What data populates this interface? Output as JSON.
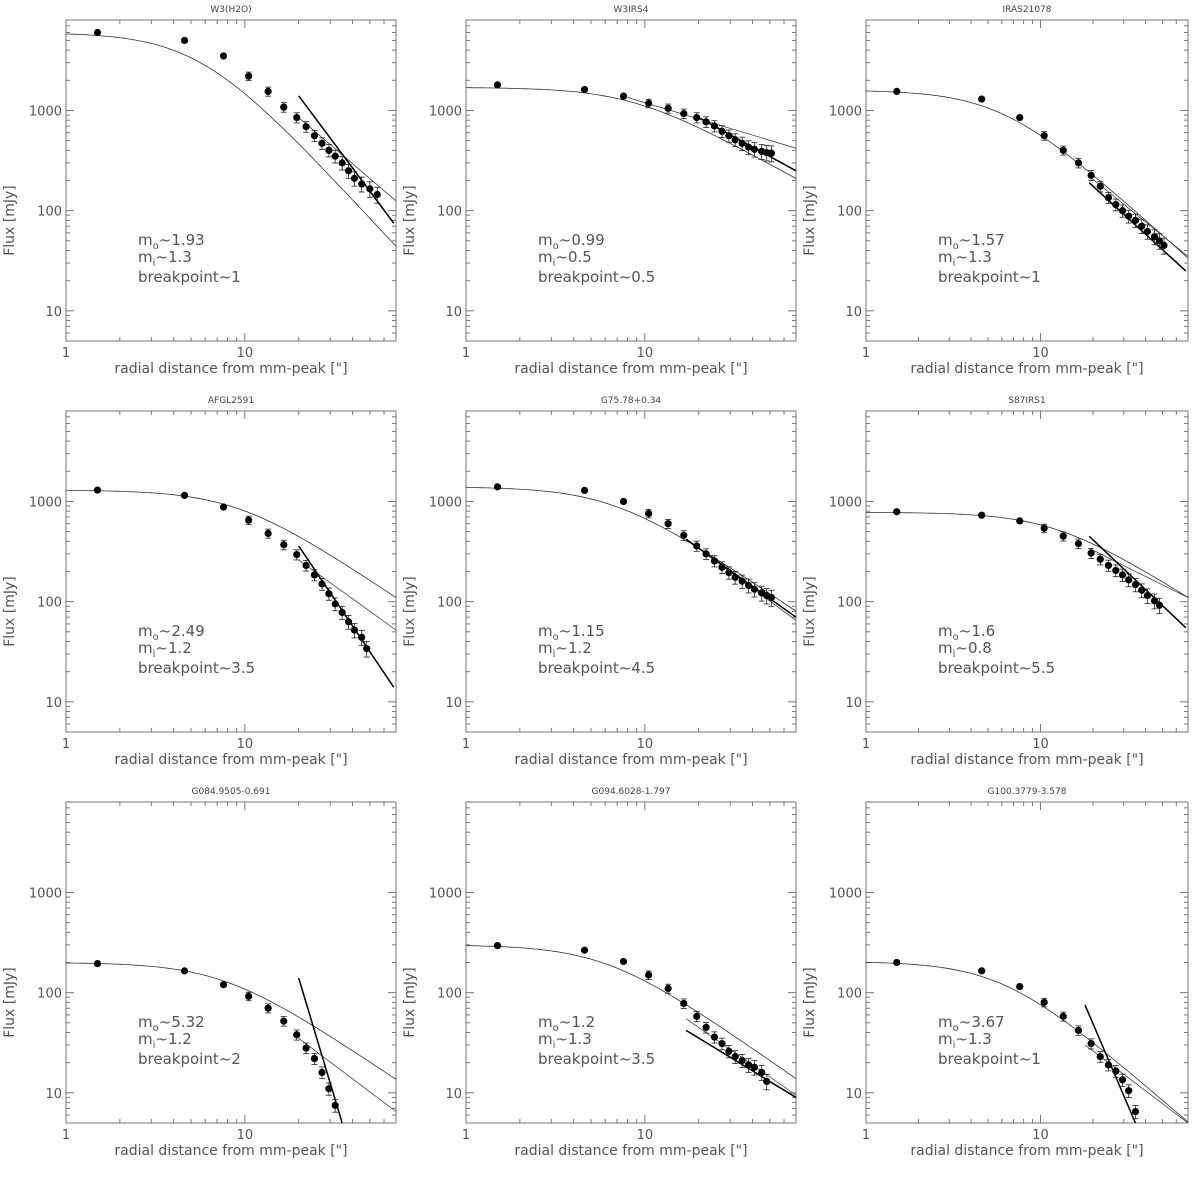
{
  "chart_data": [
    {
      "type": "scatter",
      "title": "W3(H2O)",
      "xlabel": "radial distance from mm-peak [\"]",
      "ylabel": "Flux [mJy]",
      "xscale": "log",
      "yscale": "log",
      "xlim": [
        1,
        70
      ],
      "ylim": [
        5,
        8000
      ],
      "xticks": [
        1,
        10
      ],
      "yticks": [
        10,
        100,
        1000
      ],
      "points": {
        "x": [
          1.5,
          4.6,
          7.6,
          10.5,
          13.5,
          16.5,
          19.5,
          22,
          24.5,
          27,
          29.5,
          32,
          35,
          38,
          41,
          45,
          50,
          55
        ],
        "y": [
          6000,
          5000,
          3500,
          2200,
          1550,
          1080,
          850,
          690,
          560,
          470,
          400,
          350,
          300,
          250,
          210,
          185,
          165,
          145
        ]
      },
      "model_curve": {
        "flux0": 6000,
        "r0": 5.5,
        "slope": 1.93
      },
      "inner_fit": {
        "slope": 1.93,
        "x": [
          20,
          68
        ],
        "y": [
          1400,
          75
        ]
      },
      "outer_fit": {
        "slope": 1.3,
        "x": [
          20,
          70
        ],
        "y": [
          850,
          125
        ]
      },
      "annotations": {
        "m_o_prefix": "m",
        "m_o_sub": "o",
        "m_o_value": "~1.93",
        "m_i_prefix": "m",
        "m_i_sub": "i",
        "m_i_value": "~1.3",
        "breakpoint": "breakpoint~1"
      }
    },
    {
      "type": "scatter",
      "title": "W3IRS4",
      "xlabel": "radial distance from mm-peak [\"]",
      "ylabel": "Flux [mJy]",
      "xscale": "log",
      "yscale": "log",
      "xlim": [
        1,
        70
      ],
      "ylim": [
        5,
        8000
      ],
      "xticks": [
        1,
        10
      ],
      "yticks": [
        10,
        100,
        1000
      ],
      "points": {
        "x": [
          1.5,
          4.6,
          7.6,
          10.5,
          13.5,
          16.5,
          19.5,
          22,
          24.5,
          27,
          29.5,
          32,
          35,
          38,
          41,
          45,
          48,
          51
        ],
        "y": [
          1800,
          1620,
          1390,
          1180,
          1050,
          930,
          850,
          770,
          700,
          620,
          560,
          510,
          470,
          430,
          410,
          390,
          380,
          375
        ]
      },
      "model_curve": {
        "flux0": 1700,
        "r0": 8.5,
        "slope": 0.99
      },
      "inner_fit": {
        "slope": 0.99,
        "x": [
          20,
          70
        ],
        "y": [
          850,
          250
        ]
      },
      "outer_fit": {
        "slope": 0.5,
        "x": [
          8,
          70
        ],
        "y": [
          1350,
          420
        ]
      },
      "annotations": {
        "m_o_prefix": "m",
        "m_o_sub": "o",
        "m_o_value": "~0.99",
        "m_i_prefix": "m",
        "m_i_sub": "i",
        "m_i_value": "~0.5",
        "breakpoint": "breakpoint~0.5"
      }
    },
    {
      "type": "scatter",
      "title": "IRAS21078",
      "xlabel": "radial distance from mm-peak [\"]",
      "ylabel": "Flux [mJy]",
      "xscale": "log",
      "yscale": "log",
      "xlim": [
        1,
        70
      ],
      "ylim": [
        5,
        8000
      ],
      "xticks": [
        1,
        10
      ],
      "yticks": [
        10,
        100,
        1000
      ],
      "points": {
        "x": [
          1.5,
          4.6,
          7.6,
          10.5,
          13.5,
          16.5,
          19.5,
          22,
          24.5,
          27,
          29.5,
          32,
          35,
          38,
          41,
          45,
          48,
          51
        ],
        "y": [
          1550,
          1300,
          850,
          560,
          400,
          300,
          225,
          175,
          135,
          115,
          100,
          88,
          80,
          70,
          62,
          55,
          50,
          45
        ]
      },
      "model_curve": {
        "flux0": 1600,
        "r0": 6.0,
        "slope": 1.57
      },
      "inner_fit": {
        "slope": 1.57,
        "x": [
          19,
          68
        ],
        "y": [
          190,
          25
        ]
      },
      "outer_fit": {
        "slope": 1.3,
        "x": [
          19,
          70
        ],
        "y": [
          220,
          35
        ]
      },
      "annotations": {
        "m_o_prefix": "m",
        "m_o_sub": "o",
        "m_o_value": "~1.57",
        "m_i_prefix": "m",
        "m_i_sub": "i",
        "m_i_value": "~1.3",
        "breakpoint": "breakpoint~1"
      }
    },
    {
      "type": "scatter",
      "title": "AFGL2591",
      "xlabel": "radial distance from mm-peak [\"]",
      "ylabel": "Flux [mJy]",
      "xscale": "log",
      "yscale": "log",
      "xlim": [
        1,
        70
      ],
      "ylim": [
        5,
        8000
      ],
      "xticks": [
        1,
        10
      ],
      "yticks": [
        10,
        100,
        1000
      ],
      "points": {
        "x": [
          1.5,
          4.6,
          7.6,
          10.5,
          13.5,
          16.5,
          19.5,
          22,
          24.5,
          27,
          29.5,
          32,
          35,
          38,
          41,
          45,
          48
        ],
        "y": [
          1300,
          1150,
          880,
          650,
          480,
          370,
          295,
          230,
          185,
          150,
          120,
          95,
          78,
          63,
          52,
          44,
          34
        ]
      },
      "model_curve": {
        "flux0": 1300,
        "r0": 9.0,
        "slope": 1.2
      },
      "inner_fit": {
        "slope": 2.49,
        "x": [
          20,
          68
        ],
        "y": [
          360,
          14
        ]
      },
      "outer_fit": {
        "slope": 1.2,
        "x": [
          20,
          70
        ],
        "y": [
          260,
          52
        ]
      },
      "annotations": {
        "m_o_prefix": "m",
        "m_o_sub": "o",
        "m_o_value": "~2.49",
        "m_i_prefix": "m",
        "m_i_sub": "i",
        "m_i_value": "~1.2",
        "breakpoint": "breakpoint~3.5"
      }
    },
    {
      "type": "scatter",
      "title": "G75.78+0.34",
      "xlabel": "radial distance from mm-peak [\"]",
      "ylabel": "Flux [mJy]",
      "xscale": "log",
      "yscale": "log",
      "xlim": [
        1,
        70
      ],
      "ylim": [
        5,
        8000
      ],
      "xticks": [
        1,
        10
      ],
      "yticks": [
        10,
        100,
        1000
      ],
      "points": {
        "x": [
          1.5,
          4.6,
          7.6,
          10.5,
          13.5,
          16.5,
          19.5,
          22,
          24.5,
          27,
          29.5,
          32,
          35,
          38,
          41,
          45,
          48,
          51
        ],
        "y": [
          1400,
          1290,
          1000,
          760,
          600,
          460,
          360,
          300,
          255,
          220,
          195,
          175,
          160,
          145,
          133,
          122,
          115,
          110
        ]
      },
      "model_curve": {
        "flux0": 1400,
        "r0": 6.5,
        "slope": 1.2
      },
      "inner_fit": {
        "slope": 1.15,
        "x": [
          17,
          70
        ],
        "y": [
          420,
          70
        ]
      },
      "outer_fit": {
        "slope": 1.2,
        "x": [
          17,
          70
        ],
        "y": [
          420,
          65
        ]
      },
      "annotations": {
        "m_o_prefix": "m",
        "m_o_sub": "o",
        "m_o_value": "~1.15",
        "m_i_prefix": "m",
        "m_i_sub": "i",
        "m_i_value": "~1.2",
        "breakpoint": "breakpoint~4.5"
      }
    },
    {
      "type": "scatter",
      "title": "S87IRS1",
      "xlabel": "radial distance from mm-peak [\"]",
      "ylabel": "Flux [mJy]",
      "xscale": "log",
      "yscale": "log",
      "xlim": [
        1,
        70
      ],
      "ylim": [
        5,
        8000
      ],
      "xticks": [
        1,
        10
      ],
      "yticks": [
        10,
        100,
        1000
      ],
      "points": {
        "x": [
          1.5,
          4.6,
          7.6,
          10.5,
          13.5,
          16.5,
          19.5,
          22,
          24.5,
          27,
          29.5,
          32,
          35,
          38,
          41,
          45,
          48
        ],
        "y": [
          790,
          730,
          640,
          540,
          450,
          380,
          305,
          265,
          230,
          205,
          185,
          165,
          148,
          130,
          115,
          102,
          92
        ]
      },
      "model_curve": {
        "flux0": 780,
        "r0": 12.0,
        "slope": 1.1
      },
      "inner_fit": {
        "slope": 1.6,
        "x": [
          19,
          68
        ],
        "y": [
          450,
          55
        ]
      },
      "outer_fit": {
        "slope": 0.8,
        "x": [
          19,
          70
        ],
        "y": [
          340,
          110
        ]
      },
      "annotations": {
        "m_o_prefix": "m",
        "m_o_sub": "o",
        "m_o_value": "~1.6",
        "m_i_prefix": "m",
        "m_i_sub": "i",
        "m_i_value": "~0.8",
        "breakpoint": "breakpoint~5.5"
      }
    },
    {
      "type": "scatter",
      "title": "G084.9505-0.691",
      "xlabel": "radial distance from mm-peak [\"]",
      "ylabel": "Flux [mJy]",
      "xscale": "log",
      "yscale": "log",
      "xlim": [
        1,
        70
      ],
      "ylim": [
        5,
        8000
      ],
      "xticks": [
        1,
        10
      ],
      "yticks": [
        10,
        100,
        1000
      ],
      "points": {
        "x": [
          1.5,
          4.6,
          7.6,
          10.5,
          13.5,
          16.5,
          19.5,
          22,
          24.5,
          27,
          29.5,
          32
        ],
        "y": [
          195,
          165,
          120,
          92,
          70,
          52,
          38,
          28,
          22,
          16,
          11,
          7.5
        ]
      },
      "model_curve": {
        "flux0": 200,
        "r0": 7.5,
        "slope": 1.2
      },
      "inner_fit": {
        "slope": 5.32,
        "x": [
          20,
          35
        ],
        "y": [
          140,
          5
        ]
      },
      "outer_fit": {
        "slope": 1.2,
        "x": [
          20,
          70
        ],
        "y": [
          35,
          6.5
        ]
      },
      "annotations": {
        "m_o_prefix": "m",
        "m_o_sub": "o",
        "m_o_value": "~5.32",
        "m_i_prefix": "m",
        "m_i_sub": "i",
        "m_i_value": "~1.2",
        "breakpoint": "breakpoint~2"
      }
    },
    {
      "type": "scatter",
      "title": "G094.6028-1.797",
      "xlabel": "radial distance from mm-peak [\"]",
      "ylabel": "Flux [mJy]",
      "xscale": "log",
      "yscale": "log",
      "xlim": [
        1,
        70
      ],
      "ylim": [
        5,
        8000
      ],
      "xticks": [
        1,
        10
      ],
      "yticks": [
        10,
        100,
        1000
      ],
      "points": {
        "x": [
          1.5,
          4.6,
          7.6,
          10.5,
          13.5,
          16.5,
          19.5,
          22,
          24.5,
          27,
          29.5,
          32,
          35,
          38,
          41,
          45,
          48
        ],
        "y": [
          295,
          265,
          205,
          150,
          110,
          78,
          58,
          45,
          36,
          31,
          26,
          23,
          21,
          19,
          18,
          16,
          13
        ]
      },
      "model_curve": {
        "flux0": 300,
        "r0": 6.0,
        "slope": 1.25
      },
      "inner_fit": {
        "slope": 1.2,
        "x": [
          17,
          70
        ],
        "y": [
          42,
          9
        ]
      },
      "outer_fit": {
        "slope": 1.3,
        "x": [
          17,
          70
        ],
        "y": [
          55,
          9.5
        ]
      },
      "annotations": {
        "m_o_prefix": "m",
        "m_o_sub": "o",
        "m_o_value": "~1.2",
        "m_i_prefix": "m",
        "m_i_sub": "i",
        "m_i_value": "~1.3",
        "breakpoint": "breakpoint~3.5"
      }
    },
    {
      "type": "scatter",
      "title": "G100.3779-3.578",
      "xlabel": "radial distance from mm-peak [\"]",
      "ylabel": "Flux [mJy]",
      "xscale": "log",
      "yscale": "log",
      "xlim": [
        1,
        70
      ],
      "ylim": [
        5,
        8000
      ],
      "xticks": [
        1,
        10
      ],
      "yticks": [
        10,
        100,
        1000
      ],
      "points": {
        "x": [
          1.5,
          4.6,
          7.6,
          10.5,
          13.5,
          16.5,
          19.5,
          22,
          24.5,
          27,
          29.5,
          32,
          35
        ],
        "y": [
          200,
          165,
          115,
          80,
          58,
          42,
          31,
          23,
          19,
          16.5,
          13.5,
          10.5,
          6.5
        ]
      },
      "model_curve": {
        "flux0": 205,
        "r0": 6.0,
        "slope": 1.5
      },
      "inner_fit": {
        "slope": 3.67,
        "x": [
          18,
          35
        ],
        "y": [
          75,
          5
        ]
      },
      "outer_fit": {
        "slope": 1.3,
        "x": [
          18,
          70
        ],
        "y": [
          30,
          5
        ]
      },
      "annotations": {
        "m_o_prefix": "m",
        "m_o_sub": "o",
        "m_o_value": "~3.67",
        "m_i_prefix": "m",
        "m_i_sub": "i",
        "m_i_value": "~1.3",
        "breakpoint": "breakpoint~1"
      }
    }
  ]
}
